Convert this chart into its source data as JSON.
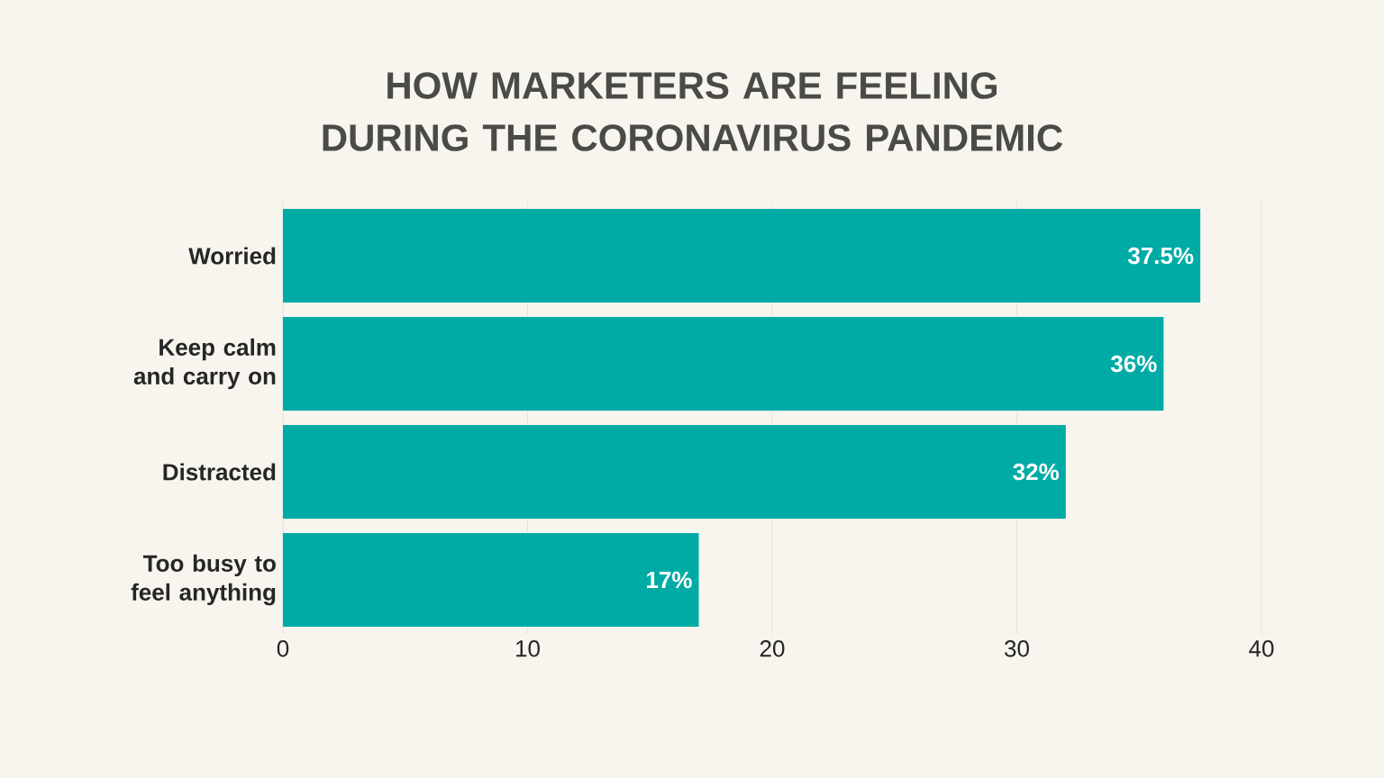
{
  "chart_data": {
    "type": "bar",
    "orientation": "horizontal",
    "title": "HOW MARKETERS ARE FEELING DURING THE CORONAVIRUS PANDEMIC",
    "categories": [
      "Worried",
      "Keep calm and carry on",
      "Distracted",
      "Too busy to feel anything"
    ],
    "values": [
      37.5,
      36,
      32,
      17
    ],
    "value_labels": [
      "37.5%",
      "36%",
      "32%",
      "17%"
    ],
    "color": "#00aba6",
    "xlim": [
      0,
      40
    ],
    "xticks": [
      0,
      10,
      20,
      30,
      40
    ],
    "grid": "x"
  }
}
